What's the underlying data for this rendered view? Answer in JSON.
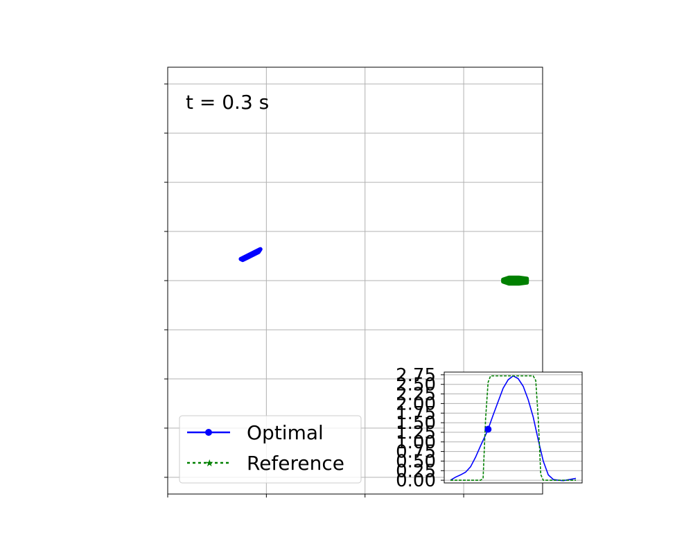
{
  "chart_data": [
    {
      "type": "scatter",
      "annotation": "t = 0.3 s",
      "xlim": [
        0,
        1.9
      ],
      "ylim": [
        -0.17,
        4.17
      ],
      "grid": true,
      "legend_position": "lower-left",
      "series": [
        {
          "name": "Optimal",
          "color": "#0000ff",
          "marker": "o",
          "linestyle": "solid",
          "shape": [
            [
              0.38,
              2.23
            ],
            [
              0.4,
              2.25
            ],
            [
              0.42,
              2.27
            ],
            [
              0.44,
              2.29
            ],
            [
              0.46,
              2.31
            ],
            [
              0.47,
              2.32
            ],
            [
              0.46,
              2.29
            ],
            [
              0.44,
              2.27
            ],
            [
              0.42,
              2.25
            ],
            [
              0.4,
              2.23
            ],
            [
              0.38,
              2.21
            ],
            [
              0.37,
              2.22
            ]
          ]
        },
        {
          "name": "Reference",
          "color": "#008000",
          "marker": "*",
          "linestyle": "dotted",
          "shape": [
            [
              1.7,
              2.01
            ],
            [
              1.73,
              2.03
            ],
            [
              1.78,
              2.03
            ],
            [
              1.82,
              2.02
            ],
            [
              1.82,
              1.98
            ],
            [
              1.78,
              1.97
            ],
            [
              1.73,
              1.97
            ],
            [
              1.7,
              1.99
            ]
          ]
        }
      ]
    },
    {
      "type": "line",
      "ylim": [
        -0.07,
        2.82
      ],
      "xlim": [
        -0.05,
        1.05
      ],
      "yticks": [
        "0.00",
        "0.25",
        "0.50",
        "0.75",
        "1.00",
        "1.25",
        "1.50",
        "1.75",
        "2.00",
        "2.25",
        "2.50",
        "2.75"
      ],
      "grid": "horizontal",
      "marker_point": {
        "x": 0.3,
        "y": 1.33
      },
      "series": [
        {
          "name": "Optimal",
          "color": "#0000ff",
          "linestyle": "solid",
          "points": [
            [
              0.0,
              0.0
            ],
            [
              0.04,
              0.08
            ],
            [
              0.08,
              0.14
            ],
            [
              0.12,
              0.21
            ],
            [
              0.16,
              0.35
            ],
            [
              0.2,
              0.6
            ],
            [
              0.24,
              0.9
            ],
            [
              0.28,
              1.18
            ],
            [
              0.3,
              1.33
            ],
            [
              0.34,
              1.7
            ],
            [
              0.38,
              2.05
            ],
            [
              0.42,
              2.4
            ],
            [
              0.46,
              2.62
            ],
            [
              0.5,
              2.72
            ],
            [
              0.54,
              2.65
            ],
            [
              0.58,
              2.45
            ],
            [
              0.62,
              2.1
            ],
            [
              0.66,
              1.65
            ],
            [
              0.7,
              1.05
            ],
            [
              0.74,
              0.5
            ],
            [
              0.78,
              0.14
            ],
            [
              0.82,
              0.02
            ],
            [
              0.86,
              0.0
            ],
            [
              0.9,
              -0.01
            ],
            [
              0.95,
              0.02
            ],
            [
              1.0,
              0.05
            ]
          ]
        },
        {
          "name": "Reference",
          "color": "#008000",
          "linestyle": "dashed",
          "points": [
            [
              0.0,
              0.0
            ],
            [
              0.24,
              0.0
            ],
            [
              0.26,
              0.05
            ],
            [
              0.28,
              1.6
            ],
            [
              0.3,
              2.55
            ],
            [
              0.32,
              2.72
            ],
            [
              0.66,
              2.72
            ],
            [
              0.68,
              2.6
            ],
            [
              0.7,
              1.6
            ],
            [
              0.72,
              0.15
            ],
            [
              0.74,
              0.0
            ],
            [
              1.0,
              0.0
            ]
          ]
        }
      ]
    }
  ],
  "legend": {
    "items": [
      {
        "label": "Optimal",
        "color": "#0000ff"
      },
      {
        "label": "Reference",
        "color": "#008000"
      }
    ]
  }
}
